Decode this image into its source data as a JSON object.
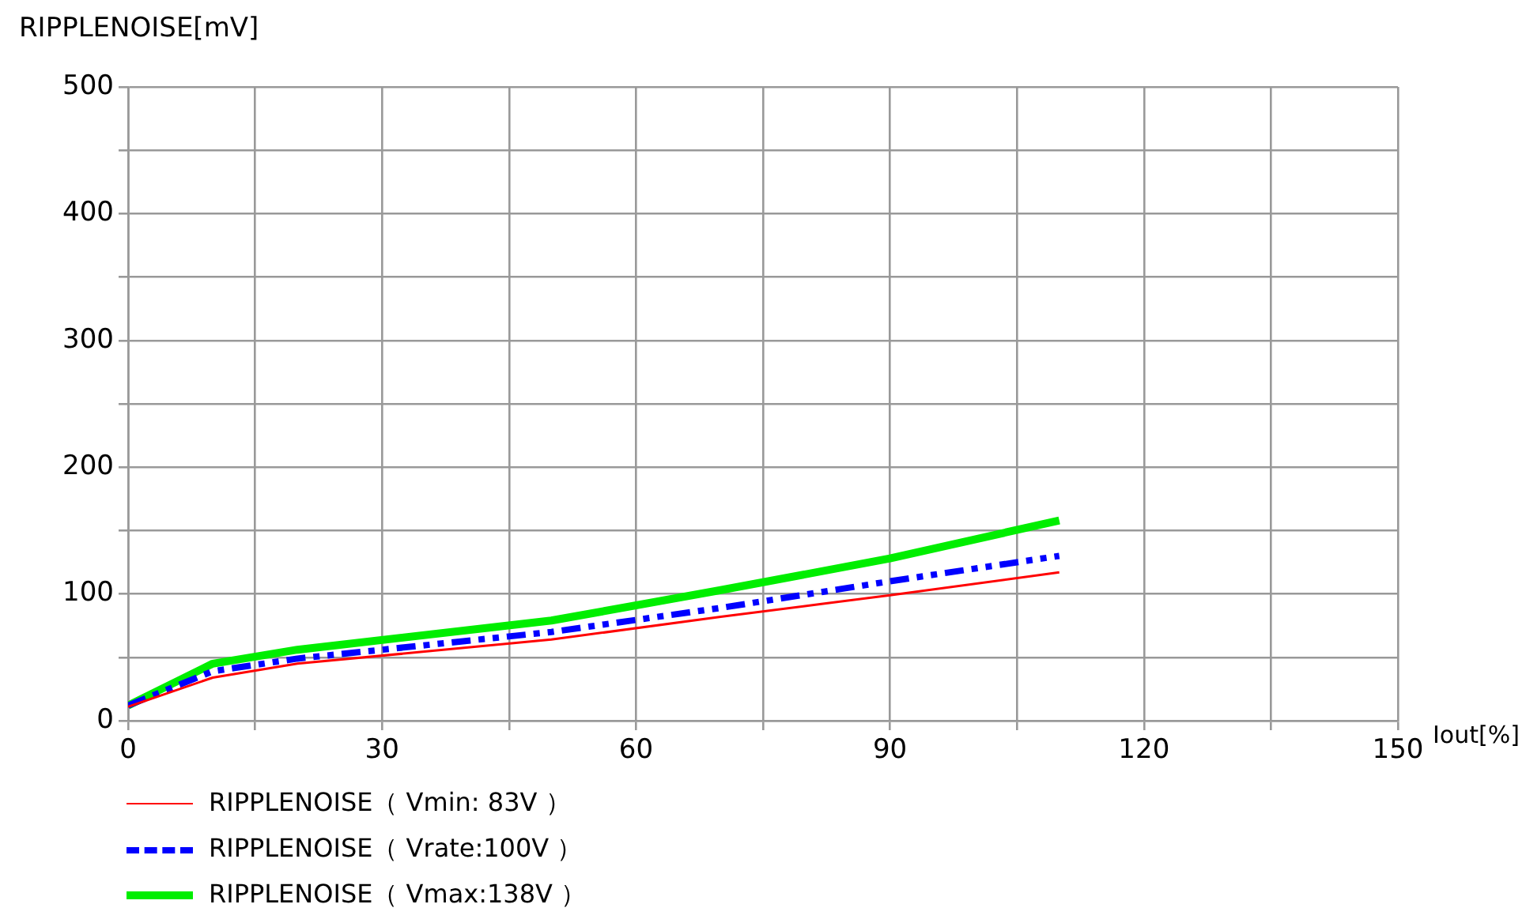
{
  "chart_data": {
    "type": "line",
    "xlabel": "Iout[%]",
    "ylabel": "RIPPLENOISE[mV]",
    "xlim": [
      0,
      150
    ],
    "xticks": [
      0,
      {
        "value": 15,
        "label": null
      },
      30,
      {
        "value": 45,
        "label": null
      },
      60,
      {
        "value": 75,
        "label": null
      },
      90,
      {
        "value": 105,
        "label": null
      },
      120,
      {
        "value": 135,
        "label": null
      },
      150
    ],
    "ylim": [
      0,
      500
    ],
    "yticks": [
      0,
      {
        "value": 50,
        "label": null
      },
      100,
      {
        "value": 150,
        "label": null
      },
      200,
      {
        "value": 250,
        "label": null
      },
      300,
      {
        "value": 350,
        "label": null
      },
      400,
      {
        "value": 450,
        "label": null
      },
      500
    ],
    "x": [
      0,
      10,
      20,
      50,
      70,
      90,
      110
    ],
    "series": [
      {
        "name": "RIPPLENOISE（ Vmin: 83V ）",
        "color": "#ff0000",
        "line_style": "solid",
        "values": [
          11,
          34,
          45,
          64,
          82,
          99,
          117
        ]
      },
      {
        "name": "RIPPLENOISE（ Vrate:100V ）",
        "color": "#0000ff",
        "line_style": "dashed",
        "values": [
          12,
          39,
          49,
          70,
          89,
          110,
          130
        ]
      },
      {
        "name": "RIPPLENOISE（ Vmax:138V ）",
        "color": "#00ee00",
        "line_style": "solid",
        "values": [
          12,
          45,
          56,
          79,
          103,
          128,
          158
        ]
      }
    ],
    "grid": true,
    "legend": "bottom left",
    "marker": "none"
  }
}
